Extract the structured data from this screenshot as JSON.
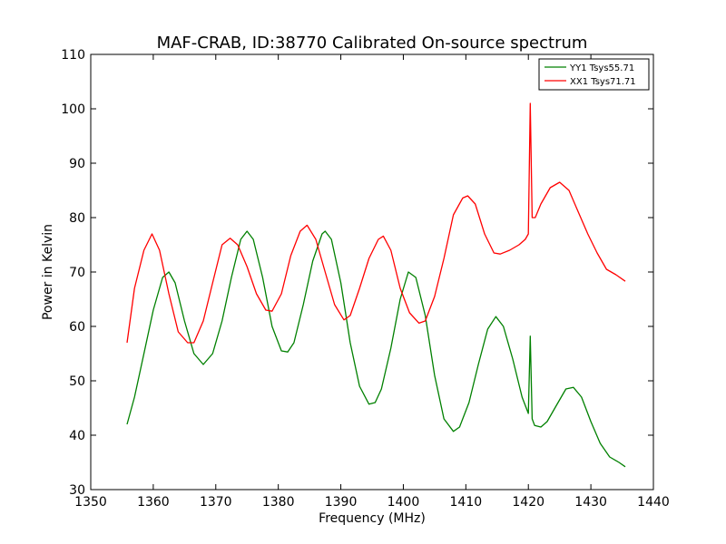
{
  "chart_data": {
    "type": "line",
    "title": "MAF-CRAB, ID:38770 Calibrated On-source spectrum",
    "xlabel": "Frequency (MHz)",
    "ylabel": "Power in Kelvin",
    "xlim": [
      1350,
      1440
    ],
    "ylim": [
      30,
      110
    ],
    "xticks": [
      1350,
      1360,
      1370,
      1380,
      1390,
      1400,
      1410,
      1420,
      1430,
      1440
    ],
    "yticks": [
      30,
      40,
      50,
      60,
      70,
      80,
      90,
      100,
      110
    ],
    "grid": false,
    "legend_position": "top-right",
    "series": [
      {
        "name": "YY1 Tsys55.71",
        "color": "#008000",
        "x": [
          1355.8,
          1357,
          1358.5,
          1360,
          1361.5,
          1362.5,
          1363.5,
          1365,
          1366.5,
          1368,
          1369.5,
          1371,
          1372.5,
          1374,
          1375,
          1376,
          1377.5,
          1379,
          1380.5,
          1381.5,
          1382.5,
          1384,
          1385.5,
          1387,
          1387.5,
          1388.5,
          1390,
          1391.5,
          1393,
          1394.5,
          1395.5,
          1396.5,
          1398,
          1399.5,
          1400.8,
          1402,
          1403.5,
          1405,
          1406.5,
          1408,
          1409,
          1410.5,
          1412,
          1413.5,
          1414.8,
          1416,
          1417.5,
          1419,
          1420,
          1420.3,
          1420.6,
          1421,
          1422,
          1423,
          1424.5,
          1426,
          1427.2,
          1428.5,
          1430,
          1431.5,
          1433,
          1434.5,
          1435.5
        ],
        "y": [
          42,
          47,
          55,
          63,
          69,
          70,
          68,
          61,
          55,
          53,
          55,
          61,
          69,
          76,
          77.5,
          76,
          69,
          60,
          55.5,
          55.3,
          57,
          64,
          72,
          77,
          77.5,
          76,
          68,
          57,
          49,
          45.7,
          46,
          48.5,
          56,
          65,
          70,
          69,
          62,
          51,
          43,
          40.7,
          41.5,
          46,
          53,
          59.5,
          61.8,
          60,
          54,
          47,
          44,
          58.2,
          43,
          41.8,
          41.5,
          42.5,
          45.5,
          48.5,
          48.8,
          47,
          42.5,
          38.5,
          36,
          35,
          34.2
        ]
      },
      {
        "name": "XX1 Tsys71.71",
        "color": "#ff0000",
        "x": [
          1355.8,
          1357,
          1358.5,
          1359.8,
          1361,
          1362.5,
          1364,
          1365.5,
          1366.5,
          1368,
          1369.5,
          1371,
          1372.3,
          1373.5,
          1375,
          1376.5,
          1378,
          1379,
          1380.5,
          1382,
          1383.5,
          1384.6,
          1386,
          1387.5,
          1389,
          1390.5,
          1391.5,
          1393,
          1394.5,
          1396,
          1396.8,
          1398,
          1399.5,
          1401,
          1402.5,
          1403.5,
          1405,
          1406.5,
          1408,
          1409.5,
          1410.3,
          1411.5,
          1413,
          1414.5,
          1415.5,
          1417,
          1418.5,
          1419.5,
          1420,
          1420.3,
          1420.6,
          1421.1,
          1422,
          1423.5,
          1425,
          1426.5,
          1428,
          1429.5,
          1431,
          1432.5,
          1434,
          1435.5
        ],
        "y": [
          57,
          67,
          74,
          77,
          74,
          66,
          59,
          57,
          57,
          61,
          68,
          75,
          76.2,
          75,
          71,
          66,
          63,
          62.8,
          66,
          73,
          77.5,
          78.6,
          76,
          70,
          64,
          61.2,
          62,
          67,
          72.5,
          76,
          76.6,
          74,
          67,
          62.5,
          60.6,
          61,
          65.5,
          72.5,
          80.5,
          83.6,
          84,
          82.5,
          77,
          73.5,
          73.3,
          74,
          75,
          76,
          77,
          101,
          80,
          80,
          82.5,
          85.5,
          86.5,
          85,
          81,
          77,
          73.5,
          70.5,
          69.5,
          68.3
        ]
      }
    ]
  }
}
